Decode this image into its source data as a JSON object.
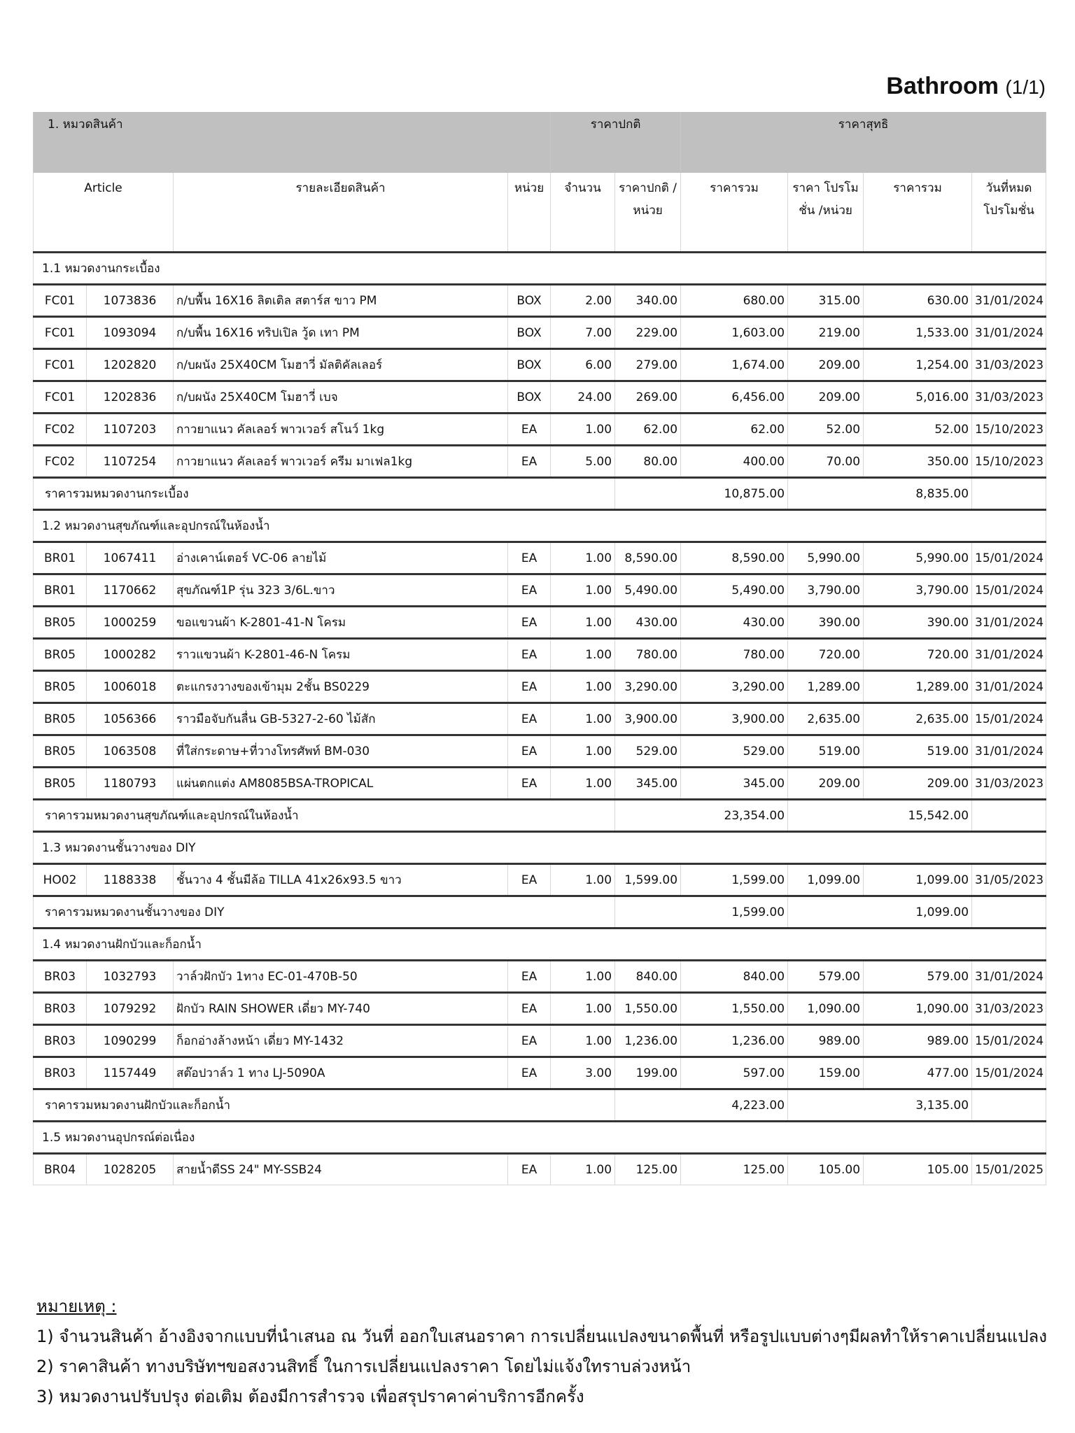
{
  "title": {
    "name": "Bathroom",
    "page": "(1/1)"
  },
  "header": {
    "category_label": "1. หมวดสินค้า",
    "group_regular": "ราคาปกติ",
    "group_net": "ราคาสุทธิ",
    "columns": [
      "Article",
      "รายละเอียดสินค้า",
      "หน่วย",
      "จำนวน",
      "ราคาปกติ /หน่วย",
      "ราคารวม",
      "ราคา โปรโมชั่น /หน่วย",
      "ราคารวม",
      "วันที่หมด โปรโมชั่น"
    ]
  },
  "sections": [
    {
      "title": "1.1 หมวดงานกระเบื้อง",
      "items": [
        [
          "FC01",
          "1073836",
          "ก/บพื้น 16X16 ลิตเติล สตาร์ส ขาว PM",
          "BOX",
          "2.00",
          "340.00",
          "680.00",
          "315.00",
          "630.00",
          "31/01/2024"
        ],
        [
          "FC01",
          "1093094",
          "ก/บพื้น 16X16 ทริปเปิล วู้ด เทา PM",
          "BOX",
          "7.00",
          "229.00",
          "1,603.00",
          "219.00",
          "1,533.00",
          "31/01/2024"
        ],
        [
          "FC01",
          "1202820",
          "ก/บผนัง 25X40CM โมฮาวี่ มัลติคัลเลอร์",
          "BOX",
          "6.00",
          "279.00",
          "1,674.00",
          "209.00",
          "1,254.00",
          "31/03/2023"
        ],
        [
          "FC01",
          "1202836",
          "ก/บผนัง 25X40CM โมฮาวี่ เบจ",
          "BOX",
          "24.00",
          "269.00",
          "6,456.00",
          "209.00",
          "5,016.00",
          "31/03/2023"
        ],
        [
          "FC02",
          "1107203",
          "กาวยาแนว คัลเลอร์ พาวเวอร์ สโนว์ 1kg",
          "EA",
          "1.00",
          "62.00",
          "62.00",
          "52.00",
          "52.00",
          "15/10/2023"
        ],
        [
          "FC02",
          "1107254",
          "กาวยาแนว คัลเลอร์ พาวเวอร์ ครีม มาเฟล1kg",
          "EA",
          "5.00",
          "80.00",
          "400.00",
          "70.00",
          "350.00",
          "15/10/2023"
        ]
      ],
      "subtotal": {
        "label": "ราคารวมหมวดงานกระเบื้อง",
        "regular": "10,875.00",
        "net": "8,835.00"
      }
    },
    {
      "title": "1.2 หมวดงานสุขภัณฑ์และอุปกรณ์ในห้องน้ำ",
      "items": [
        [
          "BR01",
          "1067411",
          "อ่างเคาน์เตอร์ VC-06 ลายไม้",
          "EA",
          "1.00",
          "8,590.00",
          "8,590.00",
          "5,990.00",
          "5,990.00",
          "15/01/2024"
        ],
        [
          "BR01",
          "1170662",
          "สุขภัณฑ์1P รุ่น 323 3/6L.ขาว",
          "EA",
          "1.00",
          "5,490.00",
          "5,490.00",
          "3,790.00",
          "3,790.00",
          "15/01/2024"
        ],
        [
          "BR05",
          "1000259",
          "ขอแขวนผ้า K-2801-41-N โครม",
          "EA",
          "1.00",
          "430.00",
          "430.00",
          "390.00",
          "390.00",
          "31/01/2024"
        ],
        [
          "BR05",
          "1000282",
          "ราวแขวนผ้า K-2801-46-N โครม",
          "EA",
          "1.00",
          "780.00",
          "780.00",
          "720.00",
          "720.00",
          "31/01/2024"
        ],
        [
          "BR05",
          "1006018",
          "ตะแกรงวางของเข้ามุม 2ชั้น  BS0229",
          "EA",
          "1.00",
          "3,290.00",
          "3,290.00",
          "1,289.00",
          "1,289.00",
          "31/01/2024"
        ],
        [
          "BR05",
          "1056366",
          "ราวมือจับกันลื่น GB-5327-2-60 ไม้สัก",
          "EA",
          "1.00",
          "3,900.00",
          "3,900.00",
          "2,635.00",
          "2,635.00",
          "15/01/2024"
        ],
        [
          "BR05",
          "1063508",
          "ที่ใส่กระดาษ+ที่วางโทรศัพท์ BM-030",
          "EA",
          "1.00",
          "529.00",
          "529.00",
          "519.00",
          "519.00",
          "31/01/2024"
        ],
        [
          "BR05",
          "1180793",
          "แผ่นตกแต่ง AM8085BSA-TROPICAL",
          "EA",
          "1.00",
          "345.00",
          "345.00",
          "209.00",
          "209.00",
          "31/03/2023"
        ]
      ],
      "subtotal": {
        "label": "ราคารวมหมวดงานสุขภัณฑ์และอุปกรณ์ในห้องน้ำ",
        "regular": "23,354.00",
        "net": "15,542.00"
      }
    },
    {
      "title": "1.3 หมวดงานชั้นวางของ DIY",
      "items": [
        [
          "HO02",
          "1188338",
          "ชั้นวาง 4 ชั้นมีล้อ TILLA 41x26x93.5 ขาว",
          "EA",
          "1.00",
          "1,599.00",
          "1,599.00",
          "1,099.00",
          "1,099.00",
          "31/05/2023"
        ]
      ],
      "subtotal": {
        "label": "ราคารวมหมวดงานชั้นวางของ DIY",
        "regular": "1,599.00",
        "net": "1,099.00"
      }
    },
    {
      "title": "1.4 หมวดงานฝักบัวและก็อกน้ำ",
      "items": [
        [
          "BR03",
          "1032793",
          "วาล์วฝักบัว 1ทาง EC-01-470B-50",
          "EA",
          "1.00",
          "840.00",
          "840.00",
          "579.00",
          "579.00",
          "31/01/2024"
        ],
        [
          "BR03",
          "1079292",
          "ฝักบัว RAIN SHOWER เดี่ยว MY-740",
          "EA",
          "1.00",
          "1,550.00",
          "1,550.00",
          "1,090.00",
          "1,090.00",
          "31/03/2023"
        ],
        [
          "BR03",
          "1090299",
          "ก็อกอ่างล้างหน้า เดี่ยว MY-1432",
          "EA",
          "1.00",
          "1,236.00",
          "1,236.00",
          "989.00",
          "989.00",
          "15/01/2024"
        ],
        [
          "BR03",
          "1157449",
          "สต๊อปวาล์ว 1 ทาง LJ-5090A",
          "EA",
          "3.00",
          "199.00",
          "597.00",
          "159.00",
          "477.00",
          "15/01/2024"
        ]
      ],
      "subtotal": {
        "label": "ราคารวมหมวดงานฝักบัวและก็อกน้ำ",
        "regular": "4,223.00",
        "net": "3,135.00"
      }
    },
    {
      "title": "1.5 หมวดงานอุปกรณ์ต่อเนื่อง",
      "items": [
        [
          "BR04",
          "1028205",
          "สายน้ำดีSS 24\" MY-SSB24",
          "EA",
          "1.00",
          "125.00",
          "125.00",
          "105.00",
          "105.00",
          "15/01/2025"
        ]
      ]
    }
  ],
  "notes": {
    "heading": "หมายเหตุ :",
    "lines": [
      "1) จำนวนสินค้า อ้างอิงจากแบบที่นำเสนอ ณ วันที่ ออกใบเสนอราคา การเปลี่ยนแปลงขนาดพื้นที่ หรือรูปแบบต่างๆมีผลทำให้ราคาเปลี่ยนแปลง",
      "2) ราคาสินค้า ทางบริษัทฯขอสงวนสิทธิ์ ในการเปลี่ยนแปลงราคา โดยไม่แจ้งใทราบล่วงหน้า",
      "3) หมวดงานปรับปรุง ต่อเติม ต้องมีการสำรวจ เพื่อสรุปราคาค่าบริการอีกครั้ง"
    ]
  }
}
